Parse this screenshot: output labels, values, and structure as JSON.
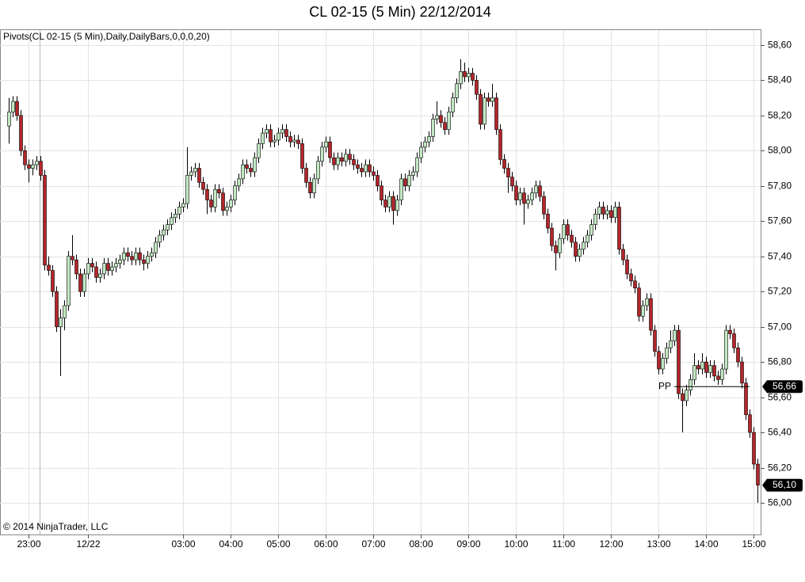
{
  "chart_data": {
    "type": "candlestick",
    "title": "CL 02-15 (5 Min)  22/12/2014",
    "indicator_label": "Pivots(CL 02-15 (5 Min),Daily,DailyBars,0,0,0,20)",
    "copyright": "© 2014 NinjaTrader, LLC",
    "up_color": "#c2e8c2",
    "down_color": "#b3262b",
    "grid": true,
    "ylim": [
      55.82,
      58.685
    ],
    "yticks": [
      {
        "value": 56.0,
        "label": "56,00"
      },
      {
        "value": 56.2,
        "label": "56,20"
      },
      {
        "value": 56.4,
        "label": "56,40"
      },
      {
        "value": 56.6,
        "label": "56,60"
      },
      {
        "value": 56.8,
        "label": "56,80"
      },
      {
        "value": 57.0,
        "label": "57,00"
      },
      {
        "value": 57.2,
        "label": "57,20"
      },
      {
        "value": 57.4,
        "label": "57,40"
      },
      {
        "value": 57.6,
        "label": "57,60"
      },
      {
        "value": 57.8,
        "label": "57,80"
      },
      {
        "value": 58.0,
        "label": "58,00"
      },
      {
        "value": 58.2,
        "label": "58,20"
      },
      {
        "value": 58.4,
        "label": "58,40"
      },
      {
        "value": 58.6,
        "label": "58,60"
      }
    ],
    "pivot": {
      "name": "PP",
      "value": 56.66,
      "label": "56,66"
    },
    "last_price": {
      "value": 56.1,
      "label": "56,10"
    },
    "categories": [
      null,
      null,
      null,
      null,
      null,
      "23:00",
      null,
      null,
      null,
      null,
      null,
      null,
      null,
      null,
      null,
      null,
      null,
      null,
      null,
      null,
      "12/22",
      null,
      null,
      null,
      null,
      null,
      null,
      null,
      null,
      null,
      null,
      null,
      null,
      null,
      null,
      null,
      null,
      null,
      null,
      null,
      null,
      null,
      null,
      null,
      "03:00",
      null,
      null,
      null,
      null,
      null,
      null,
      null,
      null,
      null,
      null,
      null,
      "04:00",
      null,
      null,
      null,
      null,
      null,
      null,
      null,
      null,
      null,
      null,
      null,
      "05:00",
      null,
      null,
      null,
      null,
      null,
      null,
      null,
      null,
      null,
      null,
      null,
      "06:00",
      null,
      null,
      null,
      null,
      null,
      null,
      null,
      null,
      null,
      null,
      null,
      "07:00",
      null,
      null,
      null,
      null,
      null,
      null,
      null,
      null,
      null,
      null,
      null,
      "08:00",
      null,
      null,
      null,
      null,
      null,
      null,
      null,
      null,
      null,
      null,
      null,
      "09:00",
      null,
      null,
      null,
      null,
      null,
      null,
      null,
      null,
      null,
      null,
      null,
      "10:00",
      null,
      null,
      null,
      null,
      null,
      null,
      null,
      null,
      null,
      null,
      null,
      "11:00",
      null,
      null,
      null,
      null,
      null,
      null,
      null,
      null,
      null,
      null,
      null,
      "12:00",
      null,
      null,
      null,
      null,
      null,
      null,
      null,
      null,
      null,
      null,
      null,
      "13:00",
      null,
      null,
      null,
      null,
      null,
      null,
      null,
      null,
      null,
      null,
      null,
      "14:00",
      null,
      null,
      null,
      null,
      null,
      null,
      null,
      null,
      null,
      null,
      null,
      "15:00",
      null
    ],
    "open": [
      58.14,
      58.22,
      58.28,
      58.2,
      58.0,
      57.92,
      57.9,
      57.92,
      57.94,
      57.86,
      57.35,
      57.32,
      57.2,
      57.0,
      57.05,
      57.12,
      57.4,
      57.38,
      57.3,
      57.2,
      57.3,
      57.36,
      57.34,
      57.28,
      57.3,
      57.36,
      57.32,
      57.34,
      57.36,
      57.38,
      57.42,
      57.4,
      57.38,
      57.42,
      57.38,
      57.36,
      57.4,
      57.42,
      57.48,
      57.52,
      57.55,
      57.58,
      57.62,
      57.64,
      57.68,
      57.7,
      57.86,
      57.88,
      57.9,
      57.82,
      57.78,
      57.72,
      57.68,
      57.78,
      57.76,
      57.66,
      57.68,
      57.72,
      57.8,
      57.84,
      57.92,
      57.9,
      57.88,
      57.96,
      58.04,
      58.1,
      58.12,
      58.05,
      58.06,
      58.1,
      58.12,
      58.08,
      58.05,
      58.06,
      58.04,
      57.9,
      57.82,
      57.76,
      57.84,
      57.94,
      58.02,
      58.05,
      57.96,
      57.92,
      57.96,
      57.94,
      57.98,
      57.95,
      57.92,
      57.9,
      57.88,
      57.92,
      57.88,
      57.86,
      57.8,
      57.72,
      57.68,
      57.74,
      57.66,
      57.72,
      57.84,
      57.8,
      57.86,
      57.88,
      57.96,
      58.02,
      58.05,
      58.08,
      58.18,
      58.2,
      58.16,
      58.12,
      58.22,
      58.3,
      58.38,
      58.45,
      58.42,
      58.44,
      58.4,
      58.32,
      58.15,
      58.3,
      58.28,
      58.3,
      58.12,
      57.95,
      57.9,
      57.85,
      57.8,
      57.72,
      57.76,
      57.7,
      57.72,
      57.76,
      57.8,
      57.74,
      57.64,
      57.56,
      57.46,
      57.42,
      57.5,
      57.58,
      57.52,
      57.48,
      57.4,
      57.44,
      57.48,
      57.52,
      57.58,
      57.64,
      57.68,
      57.64,
      57.66,
      57.62,
      57.68,
      57.44,
      57.38,
      57.3,
      57.26,
      57.22,
      57.06,
      57.12,
      57.16,
      56.98,
      56.86,
      56.76,
      56.82,
      56.88,
      56.92,
      56.98,
      56.62,
      56.58,
      56.64,
      56.7,
      56.78,
      56.76,
      56.8,
      56.74,
      56.78,
      56.72,
      56.7,
      56.76,
      56.98,
      56.96,
      56.88,
      56.8,
      56.68,
      56.5,
      56.4,
      56.22
    ],
    "high": [
      58.3,
      58.31,
      58.31,
      58.23,
      58.03,
      57.95,
      57.95,
      57.97,
      57.97,
      57.89,
      57.4,
      57.35,
      57.23,
      57.1,
      57.15,
      57.43,
      57.52,
      57.41,
      57.33,
      57.33,
      57.39,
      57.39,
      57.37,
      57.33,
      57.39,
      57.39,
      57.37,
      57.39,
      57.41,
      57.45,
      57.45,
      57.43,
      57.45,
      57.45,
      57.41,
      57.43,
      57.45,
      57.51,
      57.55,
      57.58,
      57.61,
      57.65,
      57.67,
      57.71,
      57.73,
      58.02,
      57.91,
      57.93,
      57.93,
      57.85,
      57.81,
      57.75,
      57.81,
      57.81,
      57.79,
      57.71,
      57.75,
      57.83,
      57.87,
      57.95,
      57.95,
      57.93,
      57.99,
      58.07,
      58.13,
      58.15,
      58.15,
      58.09,
      58.13,
      58.15,
      58.15,
      58.11,
      58.09,
      58.09,
      58.07,
      57.93,
      57.85,
      57.87,
      57.97,
      58.05,
      58.08,
      58.08,
      57.99,
      57.99,
      57.99,
      58.01,
      58.01,
      57.98,
      57.95,
      57.93,
      57.95,
      57.95,
      57.91,
      57.89,
      57.83,
      57.75,
      57.77,
      57.77,
      57.75,
      57.87,
      57.87,
      57.89,
      57.91,
      57.99,
      58.05,
      58.08,
      58.11,
      58.21,
      58.28,
      58.23,
      58.19,
      58.25,
      58.33,
      58.41,
      58.52,
      58.5,
      58.47,
      58.47,
      58.43,
      58.35,
      58.33,
      58.33,
      58.38,
      58.33,
      58.15,
      57.98,
      57.93,
      57.88,
      57.83,
      57.79,
      57.79,
      57.75,
      57.79,
      57.83,
      57.83,
      57.77,
      57.67,
      57.59,
      57.49,
      57.53,
      57.61,
      57.61,
      57.55,
      57.51,
      57.47,
      57.51,
      57.55,
      57.61,
      57.67,
      57.71,
      57.71,
      57.69,
      57.69,
      57.71,
      57.71,
      57.47,
      57.41,
      57.33,
      57.29,
      57.25,
      57.15,
      57.19,
      57.19,
      57.01,
      56.89,
      56.85,
      56.91,
      56.98,
      57.01,
      57.01,
      56.65,
      56.67,
      56.73,
      56.85,
      56.81,
      56.85,
      56.83,
      56.81,
      56.81,
      56.75,
      56.79,
      57.01,
      57.01,
      56.99,
      56.91,
      56.83,
      56.71,
      56.53,
      56.43,
      56.25
    ],
    "low": [
      58.04,
      58.19,
      58.17,
      57.97,
      57.89,
      57.82,
      57.86,
      57.89,
      57.83,
      57.32,
      57.29,
      57.17,
      56.97,
      56.72,
      56.98,
      57.09,
      57.35,
      57.27,
      57.17,
      57.17,
      57.27,
      57.31,
      57.25,
      57.25,
      57.27,
      57.29,
      57.29,
      57.31,
      57.33,
      57.35,
      57.37,
      57.35,
      57.35,
      57.35,
      57.32,
      57.33,
      57.37,
      57.39,
      57.45,
      57.49,
      57.52,
      57.55,
      57.59,
      57.61,
      57.65,
      57.67,
      57.83,
      57.85,
      57.79,
      57.75,
      57.64,
      57.65,
      57.65,
      57.73,
      57.63,
      57.63,
      57.65,
      57.69,
      57.77,
      57.81,
      57.87,
      57.85,
      57.85,
      57.93,
      58.01,
      58.07,
      58.02,
      58.02,
      58.03,
      58.07,
      58.05,
      58.02,
      58.02,
      58.01,
      57.87,
      57.79,
      57.73,
      57.73,
      57.81,
      57.91,
      57.99,
      57.93,
      57.89,
      57.89,
      57.91,
      57.91,
      57.92,
      57.89,
      57.87,
      57.85,
      57.85,
      57.85,
      57.83,
      57.77,
      57.69,
      57.65,
      57.65,
      57.58,
      57.63,
      57.69,
      57.77,
      57.77,
      57.83,
      57.85,
      57.93,
      57.99,
      58.02,
      58.05,
      58.15,
      58.13,
      58.09,
      58.09,
      58.19,
      58.27,
      58.35,
      58.39,
      58.39,
      58.37,
      58.29,
      58.12,
      58.12,
      58.25,
      58.25,
      58.09,
      57.92,
      57.87,
      57.76,
      57.77,
      57.69,
      57.69,
      57.58,
      57.67,
      57.69,
      57.73,
      57.71,
      57.61,
      57.53,
      57.43,
      57.32,
      57.39,
      57.47,
      57.49,
      57.45,
      57.37,
      57.37,
      57.41,
      57.45,
      57.49,
      57.55,
      57.61,
      57.61,
      57.61,
      57.59,
      57.59,
      57.41,
      57.35,
      57.27,
      57.23,
      57.19,
      57.03,
      57.03,
      57.09,
      56.95,
      56.83,
      56.73,
      56.73,
      56.79,
      56.85,
      56.89,
      56.59,
      56.4,
      56.55,
      56.61,
      56.67,
      56.73,
      56.73,
      56.71,
      56.71,
      56.69,
      56.67,
      56.67,
      56.73,
      56.93,
      56.85,
      56.77,
      56.65,
      56.47,
      56.37,
      56.19,
      56.0
    ],
    "close": [
      58.22,
      58.28,
      58.2,
      58.0,
      57.92,
      57.9,
      57.92,
      57.94,
      57.86,
      57.35,
      57.32,
      57.2,
      57.0,
      57.05,
      57.12,
      57.4,
      57.38,
      57.3,
      57.2,
      57.3,
      57.36,
      57.34,
      57.28,
      57.3,
      57.36,
      57.32,
      57.34,
      57.36,
      57.38,
      57.42,
      57.4,
      57.38,
      57.42,
      57.38,
      57.36,
      57.4,
      57.42,
      57.48,
      57.52,
      57.55,
      57.58,
      57.62,
      57.64,
      57.68,
      57.7,
      57.86,
      57.88,
      57.9,
      57.82,
      57.78,
      57.72,
      57.68,
      57.78,
      57.76,
      57.66,
      57.68,
      57.72,
      57.8,
      57.84,
      57.92,
      57.9,
      57.88,
      57.96,
      58.04,
      58.1,
      58.12,
      58.05,
      58.06,
      58.1,
      58.12,
      58.08,
      58.05,
      58.06,
      58.04,
      57.9,
      57.82,
      57.76,
      57.84,
      57.94,
      58.02,
      58.05,
      57.96,
      57.92,
      57.96,
      57.94,
      57.98,
      57.95,
      57.92,
      57.9,
      57.88,
      57.92,
      57.88,
      57.86,
      57.8,
      57.72,
      57.68,
      57.74,
      57.66,
      57.72,
      57.84,
      57.8,
      57.86,
      57.88,
      57.96,
      58.02,
      58.05,
      58.08,
      58.18,
      58.2,
      58.16,
      58.12,
      58.22,
      58.3,
      58.38,
      58.45,
      58.42,
      58.44,
      58.4,
      58.32,
      58.15,
      58.3,
      58.28,
      58.3,
      58.12,
      57.95,
      57.9,
      57.85,
      57.8,
      57.72,
      57.76,
      57.7,
      57.72,
      57.76,
      57.8,
      57.74,
      57.64,
      57.56,
      57.46,
      57.42,
      57.5,
      57.58,
      57.52,
      57.48,
      57.4,
      57.44,
      57.48,
      57.52,
      57.58,
      57.64,
      57.68,
      57.64,
      57.66,
      57.62,
      57.68,
      57.44,
      57.38,
      57.3,
      57.26,
      57.22,
      57.06,
      57.12,
      57.16,
      56.98,
      56.86,
      56.76,
      56.82,
      56.88,
      56.92,
      56.98,
      56.62,
      56.58,
      56.64,
      56.7,
      56.78,
      56.76,
      56.8,
      56.74,
      56.78,
      56.72,
      56.7,
      56.76,
      56.98,
      56.96,
      56.88,
      56.8,
      56.68,
      56.5,
      56.4,
      56.22,
      56.1
    ]
  }
}
